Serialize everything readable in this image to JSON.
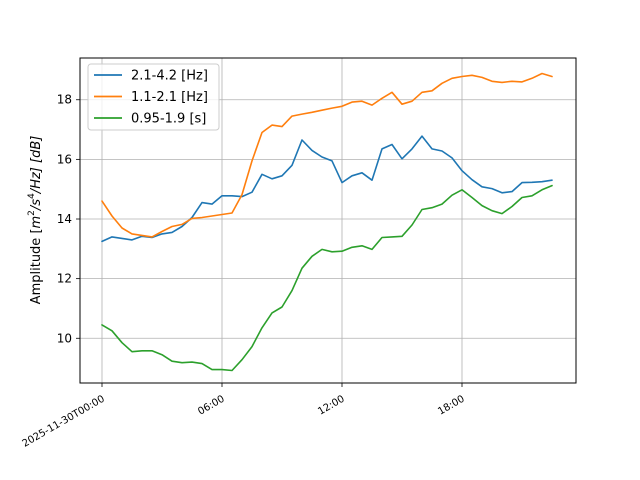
{
  "chart_data": {
    "type": "line",
    "title": "",
    "xlabel": "",
    "ylabel": "Amplitude [m²/s⁴/Hz] [dB]",
    "ylabel_parts": {
      "prefix": "Amplitude [",
      "m": "m",
      "two": "2",
      "s": "/s",
      "four": "4",
      "hz": "/Hz] [dB]"
    },
    "x_unit": "hours since 2025-11-30T00:00",
    "xlim": [
      -1.1,
      23.7
    ],
    "ylim": [
      8.5,
      19.4
    ],
    "grid": true,
    "legend_position": "upper-left",
    "x_ticks": [
      {
        "value": 0,
        "label": "2025-11-30T00:00"
      },
      {
        "value": 6,
        "label": "06:00"
      },
      {
        "value": 12,
        "label": "12:00"
      },
      {
        "value": 18,
        "label": "18:00"
      }
    ],
    "y_ticks": [
      10,
      12,
      14,
      16,
      18
    ],
    "x": [
      0,
      0.5,
      1,
      1.5,
      2,
      2.5,
      3,
      3.5,
      4,
      4.5,
      5,
      5.5,
      6,
      6.5,
      7,
      7.5,
      8,
      8.5,
      9,
      9.5,
      10,
      10.5,
      11,
      11.5,
      12,
      12.5,
      13,
      13.5,
      14,
      14.5,
      15,
      15.5,
      16,
      16.5,
      17,
      17.5,
      18,
      18.5,
      19,
      19.5,
      20,
      20.5,
      21,
      21.5,
      22,
      22.5
    ],
    "series": [
      {
        "name": "2.1-4.2 [Hz]",
        "color": "#1f77b4",
        "values": [
          13.25,
          13.4,
          13.35,
          13.3,
          13.42,
          13.38,
          13.5,
          13.55,
          13.75,
          14.05,
          14.55,
          14.5,
          14.78,
          14.78,
          14.75,
          14.9,
          15.5,
          15.35,
          15.45,
          15.8,
          16.65,
          16.3,
          16.08,
          15.95,
          15.22,
          15.45,
          15.55,
          15.3,
          16.35,
          16.5,
          16.02,
          16.35,
          16.78,
          16.35,
          16.28,
          16.05,
          15.62,
          15.32,
          15.08,
          15.02,
          14.88,
          14.92,
          15.22,
          15.23,
          15.25,
          15.3
        ]
      },
      {
        "name": "1.1-2.1 [Hz]",
        "color": "#ff7f0e",
        "values": [
          14.6,
          14.1,
          13.7,
          13.5,
          13.45,
          13.4,
          13.58,
          13.75,
          13.82,
          14.02,
          14.05,
          14.1,
          14.15,
          14.2,
          14.82,
          15.95,
          16.9,
          17.15,
          17.1,
          17.45,
          17.52,
          17.58,
          17.65,
          17.72,
          17.78,
          17.92,
          17.95,
          17.82,
          18.05,
          18.25,
          17.85,
          17.95,
          18.25,
          18.3,
          18.55,
          18.72,
          18.78,
          18.82,
          18.75,
          18.62,
          18.58,
          18.62,
          18.6,
          18.72,
          18.88,
          18.78
        ]
      },
      {
        "name": "0.95-1.9 [s]",
        "color": "#2ca02c",
        "values": [
          10.45,
          10.25,
          9.85,
          9.55,
          9.58,
          9.58,
          9.45,
          9.23,
          9.18,
          9.2,
          9.15,
          8.95,
          8.95,
          8.92,
          9.28,
          9.72,
          10.35,
          10.85,
          11.05,
          11.6,
          12.35,
          12.75,
          12.98,
          12.9,
          12.92,
          13.05,
          13.1,
          12.98,
          13.38,
          13.4,
          13.42,
          13.8,
          14.32,
          14.38,
          14.5,
          14.8,
          14.98,
          14.72,
          14.45,
          14.28,
          14.18,
          14.42,
          14.72,
          14.78,
          14.98,
          15.12
        ]
      }
    ]
  }
}
